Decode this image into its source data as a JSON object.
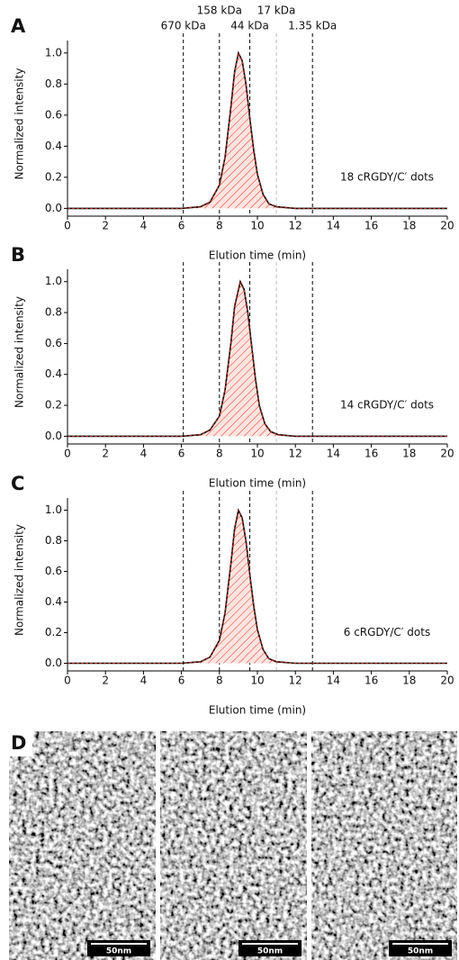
{
  "chart_data": [
    {
      "type": "line",
      "panel": "A",
      "x_label": "Elution time (min)",
      "y_label": "Normalized intensity",
      "annotation": "18 cRGDY/C′ dots",
      "x": [
        0,
        6,
        7,
        7.5,
        8,
        8.3,
        8.6,
        8.8,
        9.0,
        9.2,
        9.4,
        9.6,
        9.8,
        10.0,
        10.3,
        10.6,
        11,
        12,
        20
      ],
      "values": [
        0,
        0,
        0.01,
        0.04,
        0.15,
        0.33,
        0.65,
        0.88,
        1.0,
        0.95,
        0.8,
        0.58,
        0.38,
        0.22,
        0.09,
        0.03,
        0.01,
        0,
        0
      ],
      "color": "#000000",
      "fill_color": "#e03020",
      "xlim": [
        0,
        20
      ],
      "xticks": [
        0,
        2,
        4,
        6,
        8,
        10,
        12,
        14,
        16,
        18,
        20
      ],
      "ylim": [
        -0.05,
        1.08
      ],
      "yticks": [
        {
          "value": 0,
          "label": "0.0"
        },
        {
          "value": 0.2,
          "label": "0.2"
        },
        {
          "value": 0.4,
          "label": "0.4"
        },
        {
          "value": 0.6,
          "label": "0.6"
        },
        {
          "value": 0.8,
          "label": "0.8"
        },
        {
          "value": 1,
          "label": "1.0"
        }
      ],
      "markers": [
        {
          "x": 6.1,
          "label": "670 kDa",
          "color": "#000000"
        },
        {
          "x": 8.0,
          "label": "158 kDa",
          "color": "#000000"
        },
        {
          "x": 9.6,
          "label": "44 kDa",
          "color": "#000000"
        },
        {
          "x": 11.0,
          "label": "17 kDa",
          "color": "#bbbbbb"
        },
        {
          "x": 12.9,
          "label": "1.35 kDa",
          "color": "#000000"
        }
      ]
    },
    {
      "type": "line",
      "panel": "B",
      "x_label": "Elution time (min)",
      "y_label": "Normalized intensity",
      "annotation": "14 cRGDY/C′ dots",
      "x": [
        0,
        6,
        7,
        7.5,
        8,
        8.3,
        8.6,
        8.8,
        9.1,
        9.3,
        9.5,
        9.7,
        9.9,
        10.1,
        10.4,
        10.7,
        11.1,
        12,
        20
      ],
      "values": [
        0,
        0,
        0.01,
        0.04,
        0.13,
        0.3,
        0.6,
        0.84,
        1.0,
        0.95,
        0.8,
        0.58,
        0.37,
        0.2,
        0.08,
        0.03,
        0.01,
        0,
        0
      ],
      "color": "#000000",
      "fill_color": "#e03020",
      "xlim": [
        0,
        20
      ],
      "xticks": [
        0,
        2,
        4,
        6,
        8,
        10,
        12,
        14,
        16,
        18,
        20
      ],
      "ylim": [
        -0.05,
        1.08
      ],
      "yticks": [
        {
          "value": 0,
          "label": "0.0"
        },
        {
          "value": 0.2,
          "label": "0.2"
        },
        {
          "value": 0.4,
          "label": "0.4"
        },
        {
          "value": 0.6,
          "label": "0.6"
        },
        {
          "value": 0.8,
          "label": "0.8"
        },
        {
          "value": 1,
          "label": "1.0"
        }
      ],
      "markers": [
        {
          "x": 6.1,
          "color": "#000000"
        },
        {
          "x": 8.0,
          "color": "#000000"
        },
        {
          "x": 9.6,
          "color": "#000000"
        },
        {
          "x": 11.0,
          "color": "#bbbbbb"
        },
        {
          "x": 12.9,
          "color": "#000000"
        }
      ]
    },
    {
      "type": "line",
      "panel": "C",
      "x_label": "Elution time (min)",
      "y_label": "Normalized intensity",
      "annotation": "6 cRGDY/C′ dots",
      "x": [
        0,
        6,
        7,
        7.5,
        8,
        8.3,
        8.6,
        8.8,
        9.0,
        9.2,
        9.4,
        9.6,
        9.8,
        10.0,
        10.3,
        10.6,
        11,
        12,
        20
      ],
      "values": [
        0,
        0,
        0.01,
        0.04,
        0.15,
        0.33,
        0.65,
        0.88,
        1.0,
        0.95,
        0.8,
        0.58,
        0.38,
        0.22,
        0.09,
        0.03,
        0.01,
        0,
        0
      ],
      "color": "#000000",
      "fill_color": "#e03020",
      "xlim": [
        0,
        20
      ],
      "xticks": [
        0,
        2,
        4,
        6,
        8,
        10,
        12,
        14,
        16,
        18,
        20
      ],
      "ylim": [
        -0.05,
        1.08
      ],
      "yticks": [
        {
          "value": 0,
          "label": "0.0"
        },
        {
          "value": 0.2,
          "label": "0.2"
        },
        {
          "value": 0.4,
          "label": "0.4"
        },
        {
          "value": 0.6,
          "label": "0.6"
        },
        {
          "value": 0.8,
          "label": "0.8"
        },
        {
          "value": 1,
          "label": "1.0"
        }
      ],
      "markers": [
        {
          "x": 6.1,
          "color": "#000000"
        },
        {
          "x": 8.0,
          "color": "#000000"
        },
        {
          "x": 9.6,
          "color": "#000000"
        },
        {
          "x": 11.0,
          "color": "#bbbbbb"
        },
        {
          "x": 12.9,
          "color": "#000000"
        }
      ]
    }
  ],
  "images": {
    "panel": "D",
    "scale_bars": [
      "50nm",
      "50nm",
      "50nm"
    ]
  }
}
